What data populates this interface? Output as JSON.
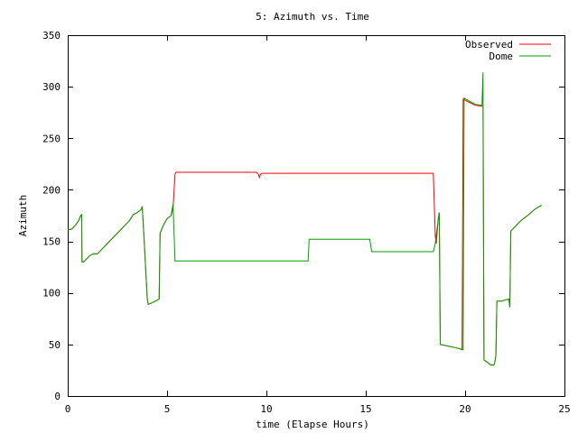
{
  "chart_data": {
    "type": "line",
    "title": "5: Azimuth vs. Time",
    "xlabel": "time (Elapse Hours)",
    "ylabel": "Azimuth",
    "xlim": [
      0,
      25
    ],
    "ylim": [
      0,
      350
    ],
    "xticks": [
      0,
      5,
      10,
      15,
      20,
      25
    ],
    "yticks": [
      0,
      50,
      100,
      150,
      200,
      250,
      300,
      350
    ],
    "grid": false,
    "legend_position": "top-right",
    "series": [
      {
        "name": "Observed",
        "color": "#ff0000",
        "points": [
          [
            0.0,
            161
          ],
          [
            0.2,
            162
          ],
          [
            0.4,
            166
          ],
          [
            0.55,
            170
          ],
          [
            0.65,
            175
          ],
          [
            0.7,
            176
          ],
          [
            0.72,
            130
          ],
          [
            0.8,
            130
          ],
          [
            0.9,
            132
          ],
          [
            1.1,
            136
          ],
          [
            1.3,
            138
          ],
          [
            1.5,
            138
          ],
          [
            1.7,
            142
          ],
          [
            1.9,
            146
          ],
          [
            2.1,
            150
          ],
          [
            2.3,
            154
          ],
          [
            2.5,
            158
          ],
          [
            2.7,
            162
          ],
          [
            2.9,
            166
          ],
          [
            3.1,
            170
          ],
          [
            3.3,
            176
          ],
          [
            3.5,
            178
          ],
          [
            3.7,
            181
          ],
          [
            3.75,
            184
          ],
          [
            3.85,
            150
          ],
          [
            4.0,
            95
          ],
          [
            4.05,
            89
          ],
          [
            4.2,
            90
          ],
          [
            4.4,
            92
          ],
          [
            4.6,
            94
          ],
          [
            4.65,
            158
          ],
          [
            4.8,
            165
          ],
          [
            5.0,
            172
          ],
          [
            5.2,
            175
          ],
          [
            5.3,
            182
          ],
          [
            5.4,
            215
          ],
          [
            5.45,
            217
          ],
          [
            6.0,
            217
          ],
          [
            9.5,
            217
          ],
          [
            9.6,
            215
          ],
          [
            9.65,
            212
          ],
          [
            9.7,
            215
          ],
          [
            9.8,
            216
          ],
          [
            12.0,
            216
          ],
          [
            15.0,
            216
          ],
          [
            18.4,
            216
          ],
          [
            18.5,
            155
          ],
          [
            18.55,
            148
          ],
          [
            18.65,
            172
          ],
          [
            18.7,
            178
          ],
          [
            18.75,
            50
          ],
          [
            19.0,
            49
          ],
          [
            19.5,
            47
          ],
          [
            19.7,
            46
          ],
          [
            19.85,
            45
          ],
          [
            19.9,
            288
          ],
          [
            20.0,
            287
          ],
          [
            20.5,
            282
          ],
          [
            20.9,
            281
          ],
          [
            20.95,
            35
          ],
          [
            21.1,
            33
          ],
          [
            21.3,
            30
          ],
          [
            21.45,
            30
          ],
          [
            21.5,
            33
          ],
          [
            21.55,
            40
          ],
          [
            21.6,
            92
          ],
          [
            21.8,
            92
          ],
          [
            22.0,
            93
          ],
          [
            22.2,
            94
          ],
          [
            22.25,
            86
          ],
          [
            22.3,
            160
          ],
          [
            22.5,
            164
          ],
          [
            22.8,
            170
          ],
          [
            23.0,
            173
          ],
          [
            23.2,
            176
          ],
          [
            23.5,
            181
          ],
          [
            23.75,
            184
          ],
          [
            23.85,
            185
          ]
        ]
      },
      {
        "name": "Dome",
        "color": "#00a000",
        "points": [
          [
            0.0,
            161
          ],
          [
            0.2,
            162
          ],
          [
            0.4,
            166
          ],
          [
            0.55,
            170
          ],
          [
            0.65,
            175
          ],
          [
            0.7,
            176
          ],
          [
            0.72,
            130
          ],
          [
            0.8,
            130
          ],
          [
            0.9,
            132
          ],
          [
            1.1,
            136
          ],
          [
            1.3,
            138
          ],
          [
            1.5,
            138
          ],
          [
            1.7,
            142
          ],
          [
            1.9,
            146
          ],
          [
            2.1,
            150
          ],
          [
            2.3,
            154
          ],
          [
            2.5,
            158
          ],
          [
            2.7,
            162
          ],
          [
            2.9,
            166
          ],
          [
            3.1,
            170
          ],
          [
            3.3,
            176
          ],
          [
            3.5,
            178
          ],
          [
            3.7,
            181
          ],
          [
            3.75,
            184
          ],
          [
            3.85,
            150
          ],
          [
            4.0,
            95
          ],
          [
            4.05,
            89
          ],
          [
            4.2,
            90
          ],
          [
            4.4,
            92
          ],
          [
            4.6,
            94
          ],
          [
            4.65,
            158
          ],
          [
            4.8,
            165
          ],
          [
            5.0,
            172
          ],
          [
            5.2,
            175
          ],
          [
            5.3,
            186
          ],
          [
            5.4,
            131
          ],
          [
            8.0,
            131
          ],
          [
            12.1,
            131
          ],
          [
            12.15,
            152
          ],
          [
            15.2,
            152
          ],
          [
            15.3,
            140
          ],
          [
            18.4,
            140
          ],
          [
            18.5,
            148
          ],
          [
            18.65,
            172
          ],
          [
            18.7,
            178
          ],
          [
            18.75,
            50
          ],
          [
            19.0,
            49
          ],
          [
            19.5,
            47
          ],
          [
            19.7,
            46
          ],
          [
            19.85,
            45
          ],
          [
            19.9,
            45
          ],
          [
            19.95,
            289
          ],
          [
            20.5,
            283
          ],
          [
            20.85,
            282
          ],
          [
            20.9,
            314
          ],
          [
            20.95,
            35
          ],
          [
            21.1,
            33
          ],
          [
            21.3,
            30
          ],
          [
            21.45,
            30
          ],
          [
            21.5,
            33
          ],
          [
            21.55,
            40
          ],
          [
            21.6,
            92
          ],
          [
            21.8,
            92
          ],
          [
            22.0,
            93
          ],
          [
            22.2,
            94
          ],
          [
            22.25,
            86
          ],
          [
            22.3,
            160
          ],
          [
            22.5,
            164
          ],
          [
            22.8,
            170
          ],
          [
            23.0,
            173
          ],
          [
            23.2,
            176
          ],
          [
            23.5,
            181
          ],
          [
            23.75,
            184
          ],
          [
            23.85,
            185
          ]
        ]
      }
    ]
  }
}
